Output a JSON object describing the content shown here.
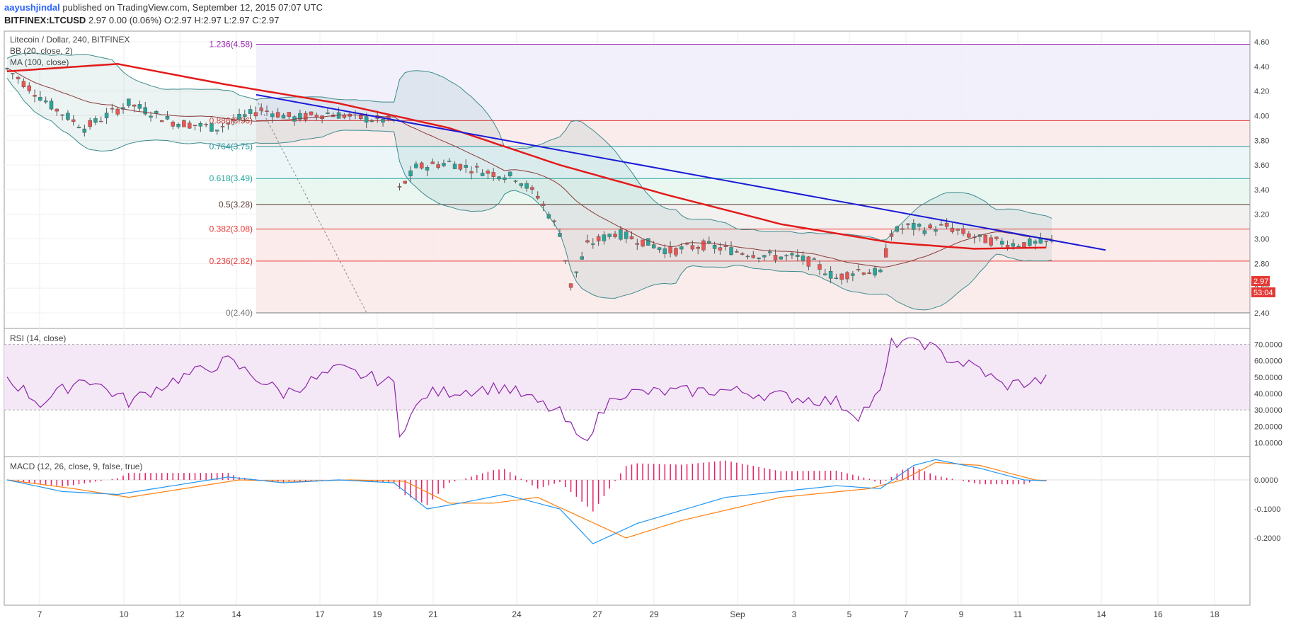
{
  "header": {
    "author": "aayushjindal",
    "published_text": "published on TradingView.com, September 12, 2015 07:07 UTC",
    "symbol": "BITFINEX:LTCUSD",
    "quote": "2.97 0.00 (0.06%) O:2.97 H:2.97 L:2.97 C:2.97"
  },
  "legend": {
    "title": "Litecoin / Dollar, 240, BITFINEX",
    "bb": "BB (20, close, 2)",
    "ma": "MA (100, close)",
    "rsi": "RSI (14, close)",
    "macd": "MACD (12, 26, close, 9, false, true)"
  },
  "price_axis": {
    "min": 2.4,
    "max": 4.6,
    "ticks": [
      "4.60",
      "4.40",
      "4.20",
      "4.00",
      "3.80",
      "3.60",
      "3.40",
      "3.20",
      "3.00",
      "2.80",
      "2.60",
      "2.40"
    ]
  },
  "rsi_axis": {
    "ticks": [
      "70.0000",
      "60.0000",
      "50.0000",
      "40.0000",
      "30.0000",
      "20.0000",
      "10.0000"
    ]
  },
  "macd_axis": {
    "ticks": [
      "0.0000",
      "-0.1000",
      "-0.2000"
    ]
  },
  "x_labels": [
    "7",
    "10",
    "12",
    "14",
    "17",
    "19",
    "21",
    "24",
    "27",
    "29",
    "Sep",
    "3",
    "5",
    "7",
    "9",
    "11",
    "14",
    "16",
    "18"
  ],
  "fibonacci": [
    {
      "label": "1.236(4.58)",
      "value": 4.58,
      "color": "#9c27b0"
    },
    {
      "label": "0.886(3.96)",
      "value": 3.96,
      "color": "#e53935"
    },
    {
      "label": "0.764(3.75)",
      "value": 3.75,
      "color": "#2196a0"
    },
    {
      "label": "0.618(3.49)",
      "value": 3.49,
      "color": "#26a69a"
    },
    {
      "label": "0.5(3.28)",
      "value": 3.28,
      "color": "#5d4037"
    },
    {
      "label": "0.382(3.08)",
      "value": 3.08,
      "color": "#e53935"
    },
    {
      "label": "0.236(2.82)",
      "value": 2.82,
      "color": "#e53935"
    },
    {
      "label": "0(2.40)",
      "value": 2.4,
      "color": "#777777"
    }
  ],
  "price_badges": {
    "last": "2.97",
    "countdown": "53:04"
  },
  "colors": {
    "up": "#26a69a",
    "down": "#ef5350",
    "ma": "#e31a1a",
    "trendline": "#1a1ad6",
    "bb": "#3d8b8b",
    "rsi": "#8e24aa",
    "macd": "#2196f3",
    "signal": "#ff7f0e",
    "hist": "#e91e63"
  }
}
